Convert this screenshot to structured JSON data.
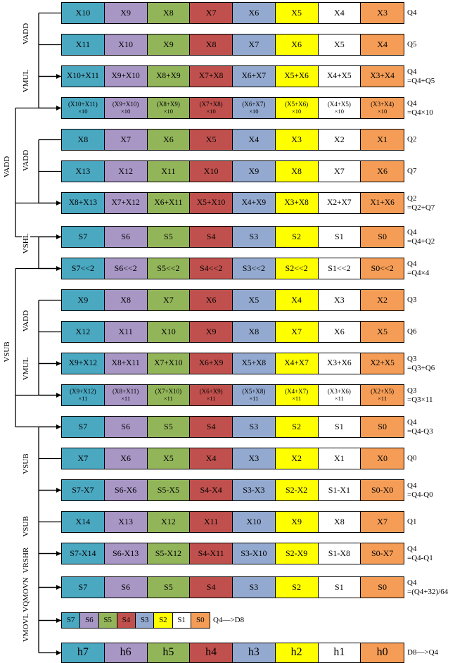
{
  "palette": [
    "#4aa8c1",
    "#a896c5",
    "#93b55a",
    "#c0504d",
    "#93a9cf",
    "#ffff00",
    "#ffffff",
    "#f59d56"
  ],
  "rows": [
    {
      "cells": [
        "X10",
        "X9",
        "X8",
        "X7",
        "X6",
        "X5",
        "X4",
        "X3"
      ],
      "label": [
        "Q4"
      ]
    },
    {
      "cells": [
        "X11",
        "X10",
        "X9",
        "X8",
        "X7",
        "X6",
        "X5",
        "X4"
      ],
      "label": [
        "Q5"
      ]
    },
    {
      "cells": [
        "X10+X11",
        "X9+X10",
        "X8+X9",
        "X7+X8",
        "X6+X7",
        "X5+X6",
        "X4+X5",
        "X3+X4"
      ],
      "label": [
        "Q4",
        "=Q4+Q5"
      ]
    },
    {
      "cells": [
        [
          "(X10+X11)",
          "×10"
        ],
        [
          "(X9+X10)",
          "×10"
        ],
        [
          "(X8+X9)",
          "×10"
        ],
        [
          "(X7+X8)",
          "×10"
        ],
        [
          "(X6+X7)",
          "×10"
        ],
        [
          "(X5+X6)",
          "×10"
        ],
        [
          "(X4+X5)",
          "×10"
        ],
        [
          "(X3+X4)",
          "×10"
        ]
      ],
      "label": [
        "Q4",
        "=Q4×10"
      ]
    },
    {
      "cells": [
        "X8",
        "X7",
        "X6",
        "X5",
        "X4",
        "X3",
        "X2",
        "X1"
      ],
      "label": [
        "Q2"
      ]
    },
    {
      "cells": [
        "X13",
        "X12",
        "X11",
        "X10",
        "X9",
        "X8",
        "X7",
        "X6"
      ],
      "label": [
        "Q7"
      ]
    },
    {
      "cells": [
        "X8+X13",
        "X7+X12",
        "X6+X11",
        "X5+X10",
        "X4+X9",
        "X3+X8",
        "X2+X7",
        "X1+X6"
      ],
      "label": [
        "Q2",
        "=Q2+Q7"
      ]
    },
    {
      "cells": [
        "S7",
        "S6",
        "S5",
        "S4",
        "S3",
        "S2",
        "S1",
        "S0"
      ],
      "label": [
        "Q4",
        "=Q4+Q2"
      ]
    },
    {
      "cells": [
        "S7<<2",
        "S6<<2",
        "S5<<2",
        "S4<<2",
        "S3<<2",
        "S2<<2",
        "S1<<2",
        "S0<<2"
      ],
      "label": [
        "Q4",
        "=Q4×4"
      ]
    },
    {
      "cells": [
        "X9",
        "X8",
        "X7",
        "X6",
        "X5",
        "X4",
        "X3",
        "X2"
      ],
      "label": [
        "Q3"
      ]
    },
    {
      "cells": [
        "X12",
        "X11",
        "X10",
        "X9",
        "X8",
        "X7",
        "X6",
        "X5"
      ],
      "label": [
        "Q6"
      ]
    },
    {
      "cells": [
        "X9+X12",
        "X8+X11",
        "X7+X10",
        "X6+X9",
        "X5+X8",
        "X4+X7",
        "X3+X6",
        "X2+X5"
      ],
      "label": [
        "Q3",
        "=Q3+Q6"
      ]
    },
    {
      "cells": [
        [
          "(X9+X12)",
          "×11"
        ],
        [
          "(X8+X11)",
          "×11"
        ],
        [
          "(X7+X10)",
          "×11"
        ],
        [
          "(X6+X9)",
          "×11"
        ],
        [
          "(X5+X8)",
          "×11"
        ],
        [
          "(X4+X7)",
          "×11"
        ],
        [
          "(X3+X6)",
          "×11"
        ],
        [
          "(X2+X5)",
          "×11"
        ]
      ],
      "label": [
        "Q3",
        "=Q3×11"
      ]
    },
    {
      "cells": [
        "S7",
        "S6",
        "S5",
        "S4",
        "S3",
        "S2",
        "S1",
        "S0"
      ],
      "label": [
        "Q4",
        "=Q4-Q3"
      ]
    },
    {
      "cells": [
        "X7",
        "X6",
        "X5",
        "X4",
        "X3",
        "X2",
        "X1",
        "X0"
      ],
      "label": [
        "Q0"
      ]
    },
    {
      "cells": [
        "S7-X7",
        "S6-X6",
        "S5-X5",
        "S4-X4",
        "S3-X3",
        "S2-X2",
        "S1-X1",
        "S0-X0"
      ],
      "label": [
        "Q4",
        "=Q4-Q0"
      ]
    },
    {
      "cells": [
        "X14",
        "X13",
        "X12",
        "X11",
        "X10",
        "X9",
        "X8",
        "X7"
      ],
      "label": [
        "Q1"
      ]
    },
    {
      "cells": [
        "S7-X14",
        "S6-X13",
        "S5-X12",
        "S4-X11",
        "S3-X10",
        "S2-X9",
        "S1-X8",
        "S0-X7"
      ],
      "label": [
        "Q4",
        "=Q4-Q1"
      ]
    },
    {
      "cells": [
        "S7",
        "S6",
        "S5",
        "S4",
        "S3",
        "S2",
        "S1",
        "S0"
      ],
      "label": [
        "Q4",
        "=(Q4+32)/64"
      ]
    },
    {
      "cells": [
        "S7",
        "S6",
        "S5",
        "S4",
        "S3",
        "S2",
        "S1",
        "S0"
      ],
      "label": [
        "Q4—>D8"
      ]
    },
    {
      "cells": [
        "h7",
        "h6",
        "h5",
        "h4",
        "h3",
        "h2",
        "h1",
        "h0"
      ],
      "label": [
        "D8—>Q4"
      ]
    }
  ],
  "operations": [
    "VADD",
    "VMUL",
    "VADD",
    "VADD",
    "VSHL",
    "VADD",
    "VMUL",
    "VSUB",
    "VSUB",
    "VSUB",
    "VRSHR",
    "VQMOVN",
    "VMOVL"
  ]
}
